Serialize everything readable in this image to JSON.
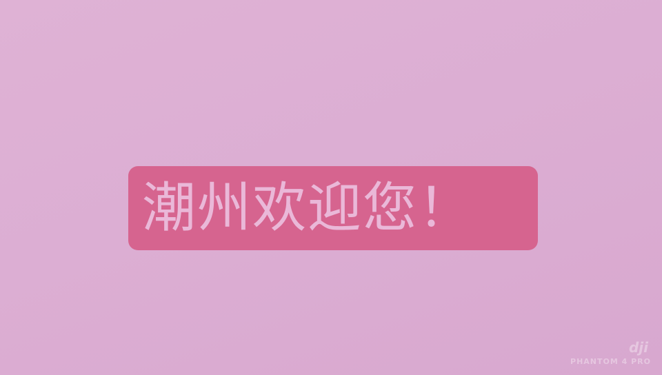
{
  "caption": {
    "text": "潮州欢迎您！"
  },
  "watermark": {
    "brand": "dji",
    "model": "PHANTOM 4 PRO"
  }
}
